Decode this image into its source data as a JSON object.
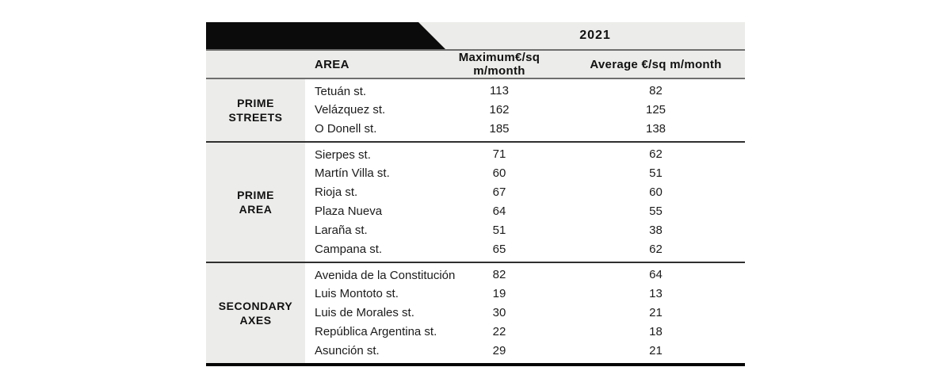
{
  "banner": {
    "year": "2021"
  },
  "colors": {
    "banner_black": "#0b0b0b",
    "band_gray": "#ececea",
    "header_border_gray": "#6e6e6e",
    "group_separator": "#2f2f2f",
    "bottom_rule": "#050505",
    "text": "#1b1b1b"
  },
  "chart_data": {
    "type": "table",
    "year_header": "2021",
    "columns": [
      "AREA",
      "Maximum€/sq m/month",
      "Average €/sq m/month"
    ],
    "units": "€/sq m/month",
    "groups": [
      {
        "label": "PRIME STREETS",
        "label_display": "PRIME\nSTREETS",
        "rows": [
          {
            "area": "Tetuán st.",
            "maximum": 113,
            "average": 82
          },
          {
            "area": "Velázquez st.",
            "maximum": 162,
            "average": 125
          },
          {
            "area": "O Donell st.",
            "maximum": 185,
            "average": 138
          }
        ]
      },
      {
        "label": "PRIME AREA",
        "label_display": "PRIME\nAREA",
        "rows": [
          {
            "area": "Sierpes st.",
            "maximum": 71,
            "average": 62
          },
          {
            "area": "Martín Villa st.",
            "maximum": 60,
            "average": 51
          },
          {
            "area": "Rioja st.",
            "maximum": 67,
            "average": 60
          },
          {
            "area": "Plaza Nueva",
            "maximum": 64,
            "average": 55
          },
          {
            "area": "Laraña st.",
            "maximum": 51,
            "average": 38
          },
          {
            "area": "Campana st.",
            "maximum": 65,
            "average": 62
          }
        ]
      },
      {
        "label": "SECONDARY AXES",
        "label_display": "SECONDARY\nAXES",
        "rows": [
          {
            "area": "Avenida de la Constitución",
            "maximum": 82,
            "average": 64
          },
          {
            "area": "Luis Montoto st.",
            "maximum": 19,
            "average": 13
          },
          {
            "area": "Luis de Morales st.",
            "maximum": 30,
            "average": 21
          },
          {
            "area": "República Argentina st.",
            "maximum": 22,
            "average": 18
          },
          {
            "area": "Asunción st.",
            "maximum": 29,
            "average": 21
          }
        ]
      }
    ]
  }
}
